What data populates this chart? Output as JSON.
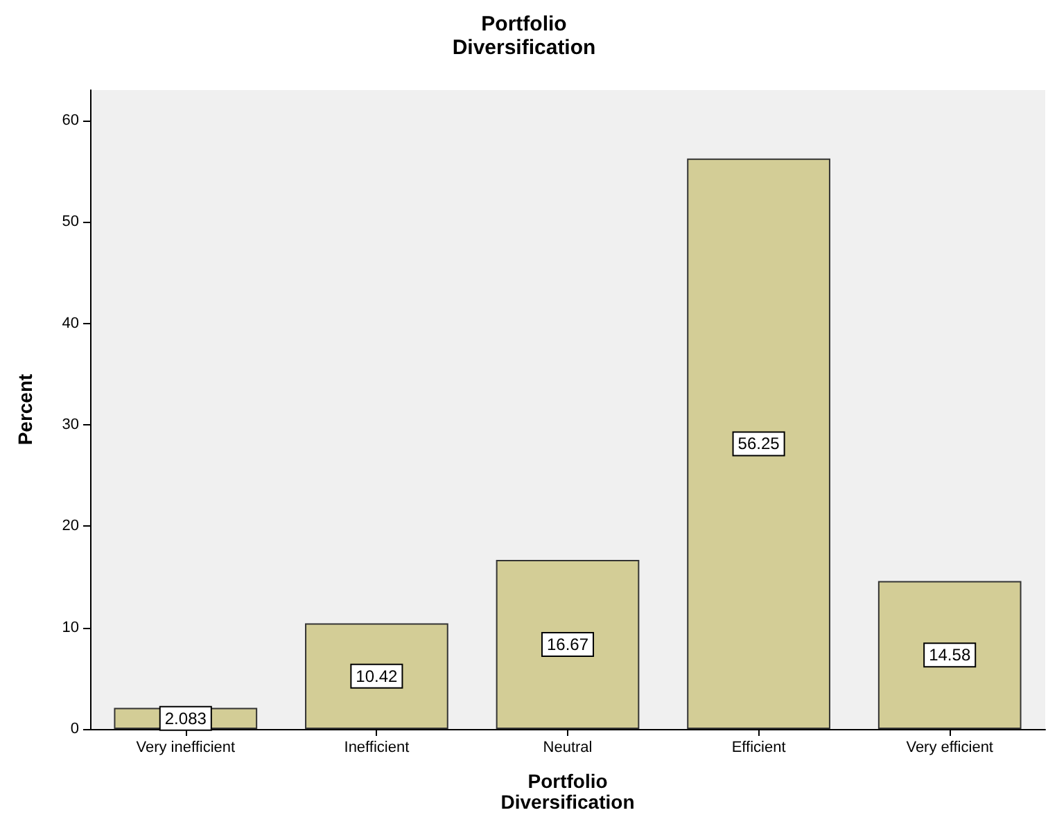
{
  "chart_data": {
    "type": "bar",
    "title": "Portfolio\nDiversification",
    "xlabel": "Portfolio\nDiversification",
    "ylabel": "Percent",
    "categories": [
      "Very inefficient",
      "Inefficient",
      "Neutral",
      "Efficient",
      "Very efficient"
    ],
    "values": [
      2.083,
      10.42,
      16.67,
      56.25,
      14.58
    ],
    "color": "#d3cd96",
    "ylim": [
      0,
      63
    ],
    "yticks": [
      0,
      10,
      20,
      30,
      40,
      50,
      60
    ],
    "grid": false,
    "data_labels": true
  }
}
